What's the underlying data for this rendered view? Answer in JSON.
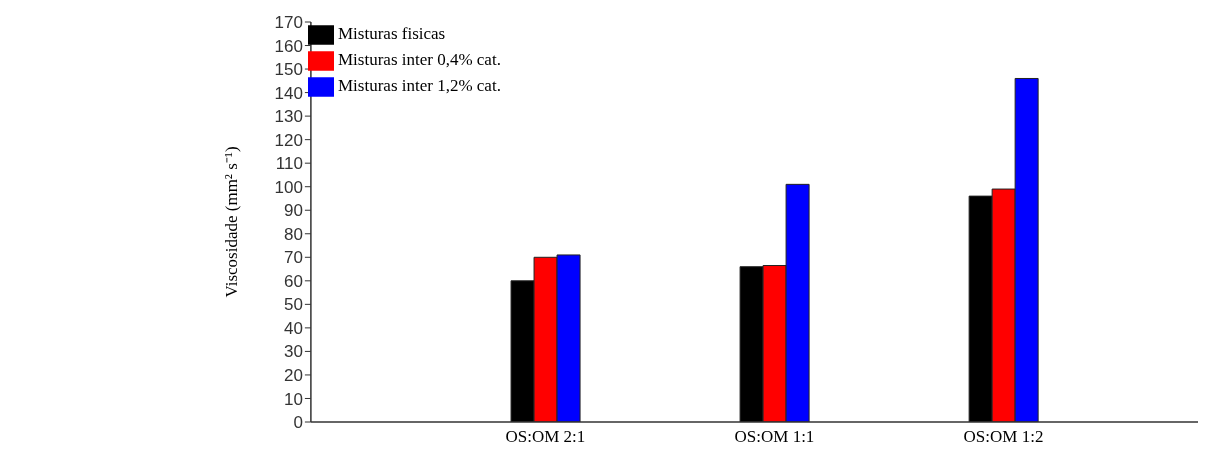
{
  "chart_data": {
    "type": "bar",
    "ylabel": "Viscosidade (mm² s⁻¹)",
    "categories": [
      "OS:OM 2:1",
      "OS:OM 1:1",
      "OS:OM 1:2"
    ],
    "series": [
      {
        "name": "Misturas fisicas",
        "color": "#000000",
        "values": [
          60,
          66,
          96
        ]
      },
      {
        "name": "Misturas inter 0,4% cat.",
        "color": "#ff0000",
        "values": [
          70,
          66.5,
          99
        ]
      },
      {
        "name": "Misturas inter 1,2% cat.",
        "color": "#0000ff",
        "values": [
          71,
          101,
          146
        ]
      }
    ],
    "ylim": [
      0,
      170
    ],
    "yticks": [
      0,
      10,
      20,
      30,
      40,
      50,
      60,
      70,
      80,
      90,
      100,
      110,
      120,
      130,
      140,
      150,
      160,
      170
    ],
    "grid": false,
    "legend": "top left"
  }
}
